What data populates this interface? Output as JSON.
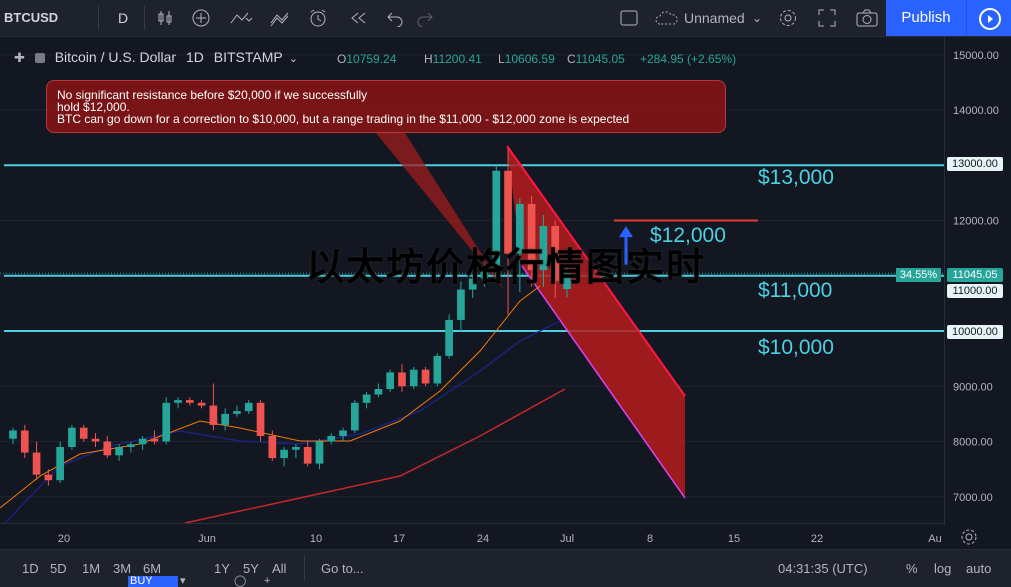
{
  "toolbar": {
    "symbol": "BTCUSD",
    "interval": "D",
    "layout_name": "Unnamed",
    "publish_label": "Publish"
  },
  "legend": {
    "title": "Bitcoin / U.S. Dollar",
    "interval": "1D",
    "exchange": "BITSTAMP",
    "open_label": "O",
    "open": "10759.24",
    "high_label": "H",
    "high": "11200.41",
    "low_label": "L",
    "low": "10606.59",
    "close_label": "C",
    "close": "11045.05",
    "change": "+284.95 (+2.65%)"
  },
  "annotation": {
    "line1": "No significant resistance before $20,000 if we successfully",
    "line2": "hold $12,000.",
    "line3": "BTC can go down for a correction to $10,000, but a range trading in the $11,000 - $12,000 zone is expected"
  },
  "levels": {
    "l13000": "$13,000",
    "l12000": "$12,000",
    "l11000": "$11,000",
    "l10000": "$10,000"
  },
  "price_axis": {
    "ticks": [
      "15000.00",
      "14000.00",
      "13000.00",
      "12000.00",
      "11000.00",
      "10000.00",
      "9000.00",
      "8000.00",
      "7000.00"
    ],
    "tag_13000": "13000.00",
    "tag_last": "11045.05",
    "tag_11000": "11000.00",
    "tag_10000": "10000.00",
    "pct_label": "34.55%"
  },
  "time_axis": {
    "ticks": [
      "20",
      "Jun",
      "10",
      "17",
      "24",
      "Jul",
      "8",
      "15",
      "22",
      "Au"
    ]
  },
  "watermark": "以太坊价格行情图实时",
  "bottom": {
    "ranges": [
      "1D",
      "5D",
      "1M",
      "3M",
      "6M",
      "1Y",
      "5Y",
      "All"
    ],
    "goto": "Go to...",
    "time": "04:31:35 (UTC)",
    "percent": "%",
    "log": "log",
    "auto": "auto",
    "buy": "BUY"
  },
  "colors": {
    "up": "#26a69a",
    "down": "#ef5350",
    "level_line": "#4dd0e1",
    "channel_fill": "#b71c1c",
    "publish": "#2962ff"
  },
  "chart_data": {
    "type": "candlestick",
    "title": "Bitcoin / U.S. Dollar",
    "ylim": [
      6500,
      15500
    ],
    "x_ticks": [
      "20",
      "Jun",
      "10",
      "17",
      "24",
      "Jul",
      "8",
      "15",
      "22",
      "Au"
    ],
    "horizontal_levels": [
      13000,
      12000,
      11000,
      10000
    ],
    "last_price": 11045.05,
    "candles": [
      {
        "o": 8050,
        "h": 8250,
        "l": 7950,
        "c": 8200
      },
      {
        "o": 8200,
        "h": 8300,
        "l": 7700,
        "c": 7800
      },
      {
        "o": 7800,
        "h": 8000,
        "l": 7300,
        "c": 7400
      },
      {
        "o": 7400,
        "h": 7500,
        "l": 7200,
        "c": 7300
      },
      {
        "o": 7300,
        "h": 8000,
        "l": 7250,
        "c": 7900
      },
      {
        "o": 7900,
        "h": 8300,
        "l": 7850,
        "c": 8250
      },
      {
        "o": 8250,
        "h": 8300,
        "l": 8000,
        "c": 8050
      },
      {
        "o": 8050,
        "h": 8150,
        "l": 7900,
        "c": 8000
      },
      {
        "o": 8000,
        "h": 8100,
        "l": 7700,
        "c": 7750
      },
      {
        "o": 7750,
        "h": 7950,
        "l": 7650,
        "c": 7900
      },
      {
        "o": 7900,
        "h": 8000,
        "l": 7800,
        "c": 7950
      },
      {
        "o": 7950,
        "h": 8100,
        "l": 7850,
        "c": 8050
      },
      {
        "o": 8050,
        "h": 8200,
        "l": 7950,
        "c": 8000
      },
      {
        "o": 8000,
        "h": 8800,
        "l": 7950,
        "c": 8700
      },
      {
        "o": 8700,
        "h": 8800,
        "l": 8600,
        "c": 8750
      },
      {
        "o": 8750,
        "h": 8800,
        "l": 8650,
        "c": 8700
      },
      {
        "o": 8700,
        "h": 8750,
        "l": 8600,
        "c": 8650
      },
      {
        "o": 8650,
        "h": 9050,
        "l": 8200,
        "c": 8300
      },
      {
        "o": 8300,
        "h": 8600,
        "l": 8200,
        "c": 8500
      },
      {
        "o": 8500,
        "h": 8650,
        "l": 8450,
        "c": 8550
      },
      {
        "o": 8550,
        "h": 8750,
        "l": 8500,
        "c": 8700
      },
      {
        "o": 8700,
        "h": 8750,
        "l": 8000,
        "c": 8100
      },
      {
        "o": 8100,
        "h": 8200,
        "l": 7650,
        "c": 7700
      },
      {
        "o": 7700,
        "h": 7900,
        "l": 7550,
        "c": 7850
      },
      {
        "o": 7850,
        "h": 7950,
        "l": 7700,
        "c": 7900
      },
      {
        "o": 7900,
        "h": 8000,
        "l": 7550,
        "c": 7600
      },
      {
        "o": 7600,
        "h": 8050,
        "l": 7500,
        "c": 8000
      },
      {
        "o": 8000,
        "h": 8150,
        "l": 7950,
        "c": 8100
      },
      {
        "o": 8100,
        "h": 8250,
        "l": 8000,
        "c": 8200
      },
      {
        "o": 8200,
        "h": 8750,
        "l": 8150,
        "c": 8700
      },
      {
        "o": 8700,
        "h": 8900,
        "l": 8600,
        "c": 8850
      },
      {
        "o": 8850,
        "h": 9050,
        "l": 8800,
        "c": 8950
      },
      {
        "o": 8950,
        "h": 9300,
        "l": 8900,
        "c": 9250
      },
      {
        "o": 9250,
        "h": 9400,
        "l": 8900,
        "c": 9000
      },
      {
        "o": 9000,
        "h": 9350,
        "l": 8950,
        "c": 9300
      },
      {
        "o": 9300,
        "h": 9350,
        "l": 9000,
        "c": 9050
      },
      {
        "o": 9050,
        "h": 9600,
        "l": 9000,
        "c": 9550
      },
      {
        "o": 9550,
        "h": 10300,
        "l": 9500,
        "c": 10200
      },
      {
        "o": 10200,
        "h": 10900,
        "l": 10000,
        "c": 10750
      },
      {
        "o": 10750,
        "h": 11000,
        "l": 10600,
        "c": 10950
      },
      {
        "o": 10950,
        "h": 11200,
        "l": 10800,
        "c": 11150
      },
      {
        "o": 11150,
        "h": 13000,
        "l": 10900,
        "c": 12900
      },
      {
        "o": 12900,
        "h": 13300,
        "l": 10300,
        "c": 11400
      },
      {
        "o": 11400,
        "h": 12400,
        "l": 10700,
        "c": 12300
      },
      {
        "o": 12300,
        "h": 12450,
        "l": 10800,
        "c": 11100
      },
      {
        "o": 11100,
        "h": 12100,
        "l": 10800,
        "c": 11900
      },
      {
        "o": 11900,
        "h": 12000,
        "l": 10600,
        "c": 10900
      },
      {
        "o": 10759.24,
        "h": 11200.41,
        "l": 10606.59,
        "c": 11045.05
      }
    ]
  }
}
